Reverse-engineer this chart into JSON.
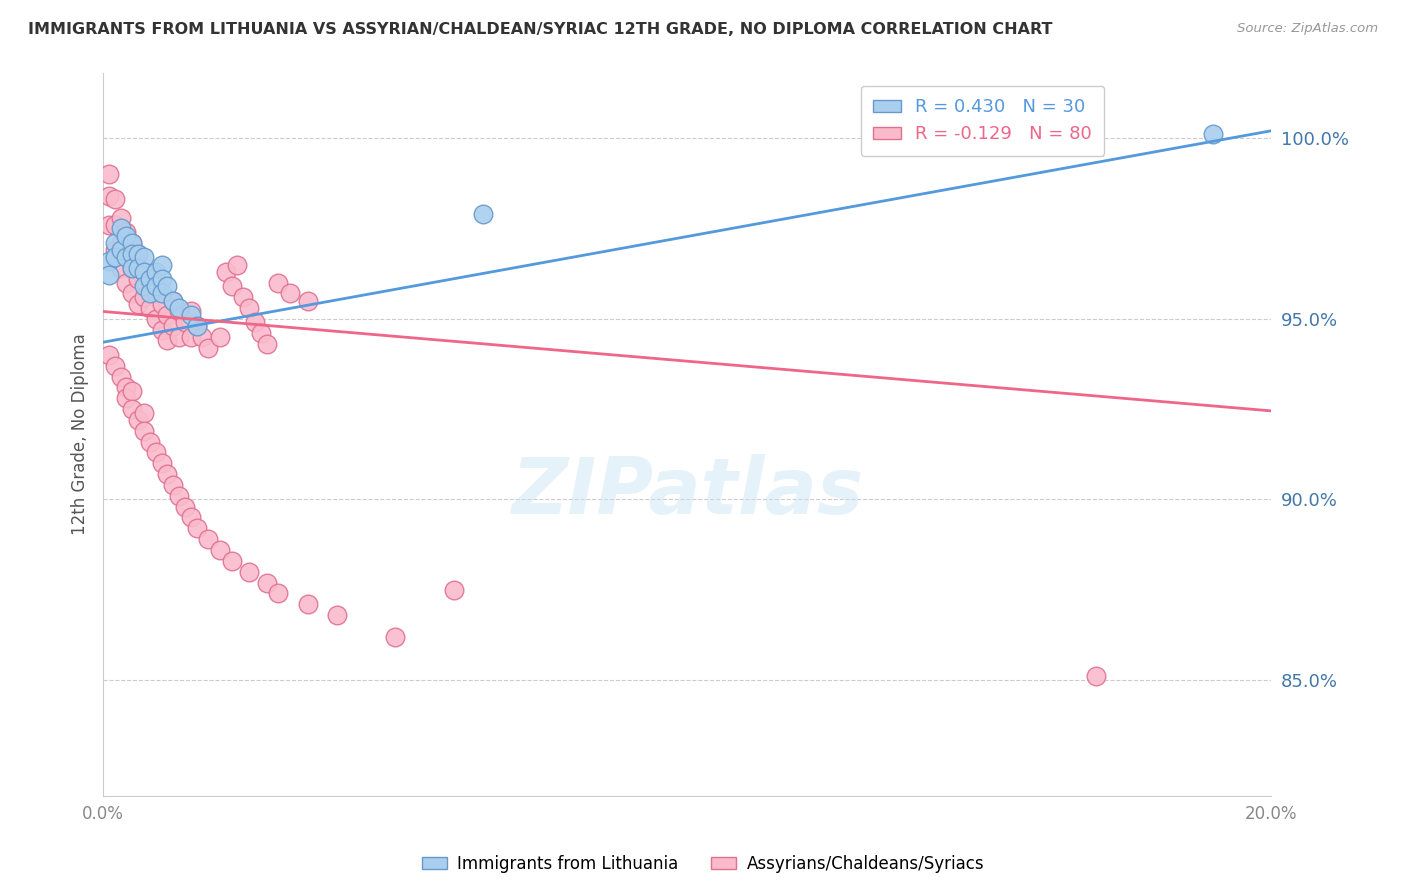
{
  "title": "IMMIGRANTS FROM LITHUANIA VS ASSYRIAN/CHALDEAN/SYRIAC 12TH GRADE, NO DIPLOMA CORRELATION CHART",
  "source": "Source: ZipAtlas.com",
  "ylabel": "12th Grade, No Diploma",
  "yticks": [
    0.85,
    0.9,
    0.95,
    1.0
  ],
  "ytick_labels": [
    "85.0%",
    "90.0%",
    "95.0%",
    "100.0%"
  ],
  "xmin": 0.0,
  "xmax": 0.2,
  "ymin": 0.818,
  "ymax": 1.018,
  "blue_R": 0.43,
  "blue_N": 30,
  "pink_R": -0.129,
  "pink_N": 80,
  "blue_label": "Immigrants from Lithuania",
  "pink_label": "Assyrians/Chaldeans/Syriacs",
  "blue_color": "#AACFEE",
  "blue_edge": "#6699CC",
  "pink_color": "#F9BBCC",
  "pink_edge": "#E07090",
  "blue_line_color": "#5599DD",
  "pink_line_color": "#EE6688",
  "title_color": "#333333",
  "axis_label_color": "#4477AA",
  "blue_trend_x": [
    0.0,
    0.2
  ],
  "blue_trend_y": [
    0.9435,
    1.002
  ],
  "pink_trend_x": [
    0.0,
    0.2
  ],
  "pink_trend_y": [
    0.952,
    0.9245
  ],
  "blue_scatter_x": [
    0.001,
    0.001,
    0.002,
    0.002,
    0.003,
    0.003,
    0.004,
    0.004,
    0.005,
    0.005,
    0.005,
    0.006,
    0.006,
    0.007,
    0.007,
    0.007,
    0.008,
    0.008,
    0.009,
    0.009,
    0.01,
    0.01,
    0.01,
    0.011,
    0.012,
    0.013,
    0.015,
    0.016,
    0.065,
    0.19
  ],
  "blue_scatter_y": [
    0.966,
    0.962,
    0.971,
    0.967,
    0.975,
    0.969,
    0.973,
    0.967,
    0.971,
    0.968,
    0.964,
    0.968,
    0.964,
    0.967,
    0.963,
    0.959,
    0.961,
    0.957,
    0.963,
    0.959,
    0.965,
    0.961,
    0.957,
    0.959,
    0.955,
    0.953,
    0.951,
    0.948,
    0.979,
    1.001
  ],
  "pink_scatter_x": [
    0.001,
    0.001,
    0.001,
    0.002,
    0.002,
    0.002,
    0.003,
    0.003,
    0.003,
    0.004,
    0.004,
    0.004,
    0.005,
    0.005,
    0.005,
    0.006,
    0.006,
    0.006,
    0.007,
    0.007,
    0.008,
    0.008,
    0.009,
    0.009,
    0.01,
    0.01,
    0.011,
    0.011,
    0.012,
    0.012,
    0.013,
    0.013,
    0.014,
    0.015,
    0.015,
    0.016,
    0.017,
    0.018,
    0.02,
    0.021,
    0.022,
    0.023,
    0.024,
    0.025,
    0.026,
    0.027,
    0.028,
    0.03,
    0.032,
    0.035,
    0.001,
    0.002,
    0.003,
    0.004,
    0.004,
    0.005,
    0.005,
    0.006,
    0.007,
    0.007,
    0.008,
    0.009,
    0.01,
    0.011,
    0.012,
    0.013,
    0.014,
    0.015,
    0.016,
    0.018,
    0.02,
    0.022,
    0.025,
    0.028,
    0.03,
    0.035,
    0.04,
    0.05,
    0.17,
    0.06
  ],
  "pink_scatter_y": [
    0.99,
    0.984,
    0.976,
    0.983,
    0.976,
    0.969,
    0.978,
    0.971,
    0.964,
    0.974,
    0.967,
    0.96,
    0.971,
    0.964,
    0.957,
    0.968,
    0.961,
    0.954,
    0.963,
    0.956,
    0.96,
    0.953,
    0.957,
    0.95,
    0.954,
    0.947,
    0.951,
    0.944,
    0.955,
    0.948,
    0.952,
    0.945,
    0.949,
    0.952,
    0.945,
    0.948,
    0.945,
    0.942,
    0.945,
    0.963,
    0.959,
    0.965,
    0.956,
    0.953,
    0.949,
    0.946,
    0.943,
    0.96,
    0.957,
    0.955,
    0.94,
    0.937,
    0.934,
    0.931,
    0.928,
    0.93,
    0.925,
    0.922,
    0.924,
    0.919,
    0.916,
    0.913,
    0.91,
    0.907,
    0.904,
    0.901,
    0.898,
    0.895,
    0.892,
    0.889,
    0.886,
    0.883,
    0.88,
    0.877,
    0.874,
    0.871,
    0.868,
    0.862,
    0.851,
    0.875
  ]
}
